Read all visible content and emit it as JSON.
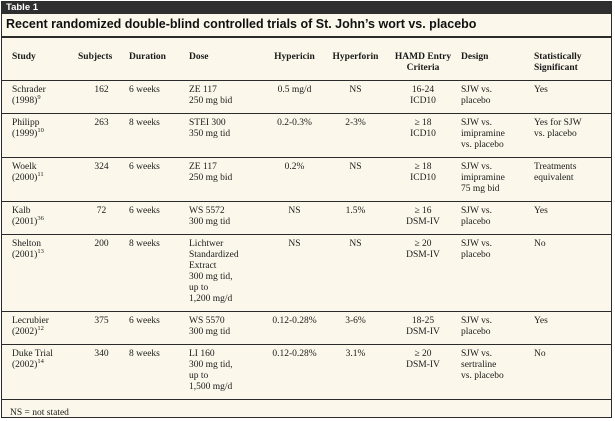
{
  "table_label": "Table 1",
  "title": "Recent randomized double-blind controlled trials of St. John’s wort vs. placebo",
  "headers": {
    "study": "Study",
    "subjects": "Subjects",
    "duration": "Duration",
    "dose": "Dose",
    "hypericin": "Hypericin",
    "hyperforin": "Hyperforin",
    "hamd_line1": "HAMD Entry",
    "hamd_line2": "Criteria",
    "design": "Design",
    "significant_line1": "Statistically",
    "significant_line2": "Significant"
  },
  "rows": [
    {
      "study1": "Schrader",
      "study2": "(1998)",
      "ref": "9",
      "subjects": "162",
      "duration": "6 weeks",
      "dose": [
        "ZE 117",
        "250 mg bid"
      ],
      "hypericin": "0.5 mg/d",
      "hyperforin": "NS",
      "hamd": [
        "16-24",
        "ICD10"
      ],
      "design": [
        "SJW vs.",
        "placebo"
      ],
      "significant": [
        "Yes"
      ]
    },
    {
      "study1": "Philipp",
      "study2": "(1999)",
      "ref": "10",
      "subjects": "263",
      "duration": "8 weeks",
      "dose": [
        "STEI 300",
        "350 mg tid"
      ],
      "hypericin": "0.2-0.3%",
      "hyperforin": "2-3%",
      "hamd": [
        "≥ 18",
        "ICD10"
      ],
      "design": [
        "SJW vs.",
        "imipramine",
        "vs. placebo"
      ],
      "significant": [
        "Yes for SJW",
        "vs. placebo"
      ]
    },
    {
      "study1": "Woelk",
      "study2": "(2000)",
      "ref": "11",
      "subjects": "324",
      "duration": "6 weeks",
      "dose": [
        "ZE 117",
        "250 mg bid"
      ],
      "hypericin": "0.2%",
      "hyperforin": "NS",
      "hamd": [
        "≥ 18",
        "ICD10"
      ],
      "design": [
        "SJW vs.",
        "imipramine",
        "75 mg bid"
      ],
      "significant": [
        "Treatments",
        "equivalent"
      ]
    },
    {
      "study1": "Kalb",
      "study2": "(2001)",
      "ref": "36",
      "subjects": "72",
      "duration": "6 weeks",
      "dose": [
        "WS 5572",
        "300 mg tid"
      ],
      "hypericin": "NS",
      "hyperforin": "1.5%",
      "hamd": [
        "≥ 16",
        "DSM-IV"
      ],
      "design": [
        "SJW vs.",
        "placebo"
      ],
      "significant": [
        "Yes"
      ]
    },
    {
      "study1": "Shelton",
      "study2": "(2001)",
      "ref": "13",
      "subjects": "200",
      "duration": "8 weeks",
      "dose": [
        "Lichtwer",
        "Standardized",
        "Extract",
        "300 mg tid,",
        "up to",
        "1,200 mg/d"
      ],
      "hypericin": "NS",
      "hyperforin": "NS",
      "hamd": [
        "≥ 20",
        "DSM-IV"
      ],
      "design": [
        "SJW vs.",
        "placebo"
      ],
      "significant": [
        "No"
      ]
    },
    {
      "study1": "Lecrubier",
      "study2": "(2002)",
      "ref": "12",
      "subjects": "375",
      "duration": "6 weeks",
      "dose": [
        "WS 5570",
        "300 mg tid"
      ],
      "hypericin": "0.12-0.28%",
      "hyperforin": "3-6%",
      "hamd": [
        "18-25",
        "DSM-IV"
      ],
      "design": [
        "SJW vs.",
        "placebo"
      ],
      "significant": [
        "Yes"
      ]
    },
    {
      "study1": "Duke Trial",
      "study2": "(2002)",
      "ref": "14",
      "subjects": "340",
      "duration": "8 weeks",
      "dose": [
        "LI 160",
        "300 mg tid,",
        "up to",
        "1,500 mg/d"
      ],
      "hypericin": "0.12-0.28%",
      "hyperforin": "3.1%",
      "hamd": [
        "≥ 20",
        "DSM-IV"
      ],
      "design": [
        "SJW vs.",
        "sertraline",
        "vs. placebo"
      ],
      "significant": [
        "No"
      ]
    }
  ],
  "footnote": "NS = not stated"
}
